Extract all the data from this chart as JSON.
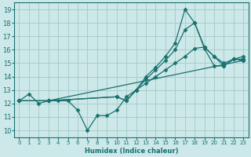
{
  "xlabel": "Humidex (Indice chaleur)",
  "bg_color": "#cce8e8",
  "grid_color": "#aacccc",
  "line_color": "#1a7070",
  "marker": "D",
  "marker_size": 2.5,
  "line_width": 0.9,
  "xlim": [
    -0.5,
    23.5
  ],
  "ylim": [
    9.5,
    19.5
  ],
  "xticks": [
    0,
    1,
    2,
    3,
    4,
    5,
    6,
    7,
    8,
    9,
    10,
    11,
    12,
    13,
    14,
    15,
    16,
    17,
    18,
    19,
    20,
    21,
    22,
    23
  ],
  "yticks": [
    10,
    11,
    12,
    13,
    14,
    15,
    16,
    17,
    18,
    19
  ],
  "lines": [
    {
      "x": [
        0,
        1,
        2,
        3,
        4,
        5,
        6,
        7,
        8,
        9,
        10,
        11,
        12,
        13,
        14,
        15,
        16,
        17,
        18,
        19,
        20,
        21,
        22,
        23
      ],
      "y": [
        12.2,
        12.7,
        12.0,
        12.2,
        12.2,
        12.2,
        11.5,
        10.0,
        11.1,
        11.1,
        11.5,
        12.5,
        13.0,
        14.0,
        14.7,
        15.5,
        16.5,
        19.0,
        18.0,
        16.1,
        14.8,
        14.8,
        15.3,
        15.2
      ]
    },
    {
      "x": [
        0,
        3,
        10,
        11,
        12,
        13,
        14,
        15,
        16,
        17,
        18,
        19,
        20,
        21,
        22,
        23
      ],
      "y": [
        12.2,
        12.2,
        12.5,
        12.2,
        13.0,
        13.8,
        14.5,
        15.2,
        16.0,
        17.5,
        18.0,
        16.2,
        15.5,
        14.8,
        15.3,
        15.5
      ]
    },
    {
      "x": [
        0,
        3,
        10,
        11,
        12,
        13,
        14,
        15,
        16,
        17,
        18,
        19,
        20,
        21,
        22,
        23
      ],
      "y": [
        12.2,
        12.2,
        12.5,
        12.2,
        13.0,
        13.5,
        14.0,
        14.5,
        15.0,
        15.5,
        16.1,
        16.2,
        15.5,
        15.0,
        15.3,
        15.3
      ]
    },
    {
      "x": [
        0,
        3,
        23
      ],
      "y": [
        12.2,
        12.2,
        15.2
      ]
    }
  ]
}
